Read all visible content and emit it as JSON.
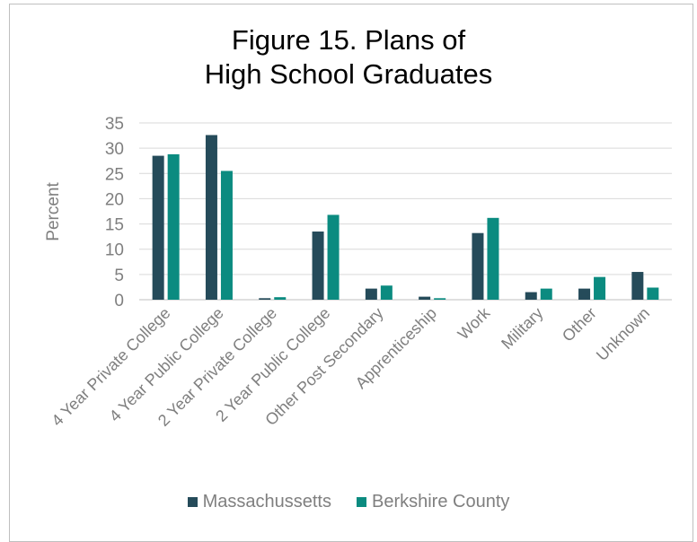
{
  "title_line1": "Figure 15. Plans of",
  "title_line2": "High School Graduates",
  "chart_data": {
    "type": "bar",
    "title": "Figure 15. Plans of High School Graduates",
    "ylabel": "Percent",
    "xlabel": "",
    "ylim": [
      0,
      35
    ],
    "yticks": [
      0,
      5,
      10,
      15,
      20,
      25,
      30,
      35
    ],
    "grid": true,
    "legend_position": "bottom",
    "categories": [
      "4 Year Private College",
      "4 Year Public College",
      "2 Year Private College",
      "2 Year Public College",
      "Other Post Secondary",
      "Apprenticeship",
      "Work",
      "Military",
      "Other",
      "Unknown"
    ],
    "series": [
      {
        "name": "Massachussetts",
        "color": "#254b5a",
        "values": [
          28.5,
          32.6,
          0.3,
          13.5,
          2.2,
          0.6,
          13.2,
          1.5,
          2.2,
          5.5
        ]
      },
      {
        "name": "Berkshire County",
        "color": "#0b8b80",
        "values": [
          28.8,
          25.5,
          0.5,
          16.8,
          2.8,
          0.3,
          16.2,
          2.2,
          4.5,
          2.4
        ]
      }
    ]
  }
}
